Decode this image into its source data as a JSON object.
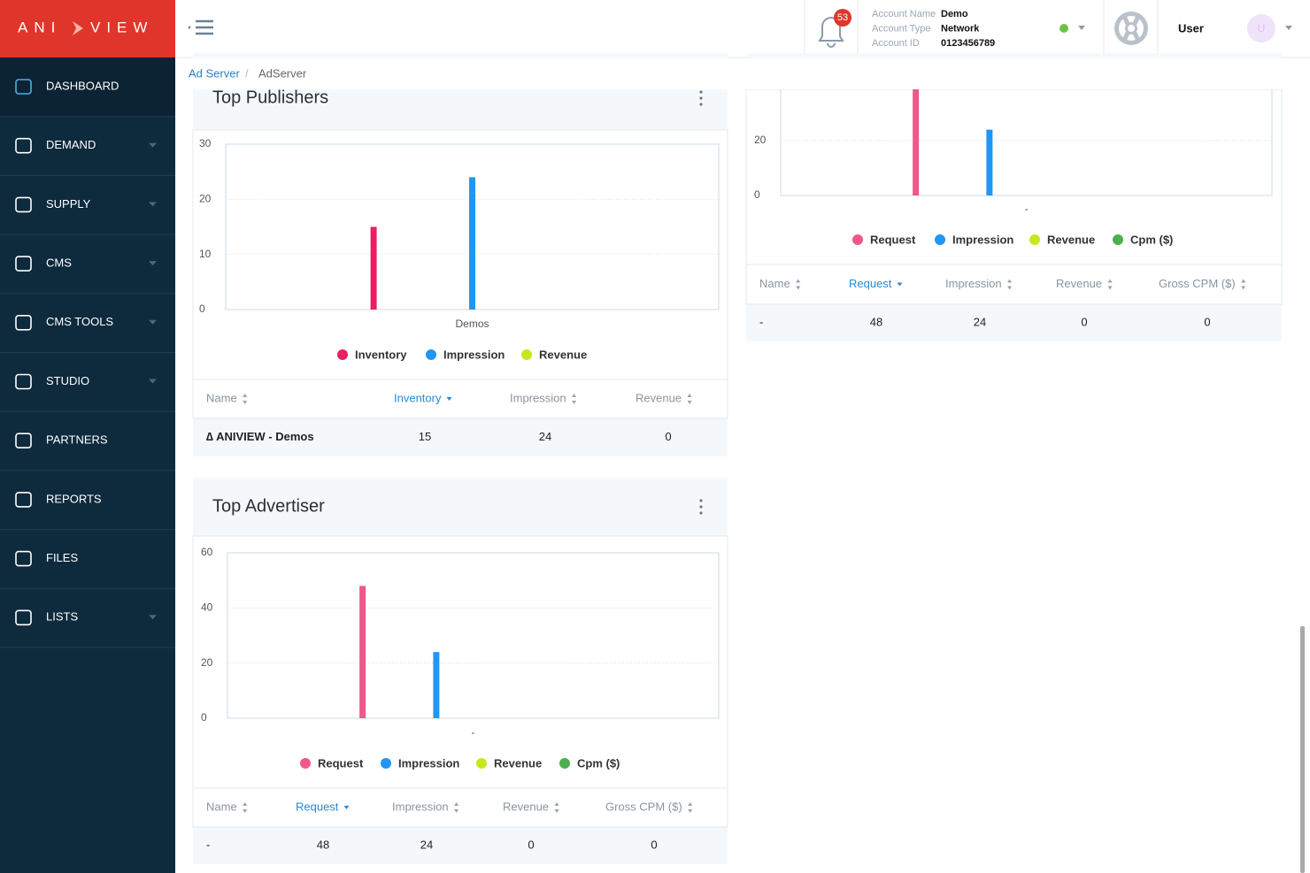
{
  "logo": {
    "left": "ANI",
    "right": "VIEW"
  },
  "menu": [
    {
      "label": "DASHBOARD",
      "dropdown": false
    },
    {
      "label": "DEMAND",
      "dropdown": true
    },
    {
      "label": "SUPPLY",
      "dropdown": true
    },
    {
      "label": "CMS",
      "dropdown": true
    },
    {
      "label": "CMS TOOLS",
      "dropdown": true
    },
    {
      "label": "STUDIO",
      "dropdown": true
    },
    {
      "label": "PARTNERS",
      "dropdown": false
    },
    {
      "label": "REPORTS",
      "dropdown": false
    },
    {
      "label": "FILES",
      "dropdown": false
    },
    {
      "label": "LISTS",
      "dropdown": true
    }
  ],
  "header": {
    "notifications": 53,
    "account": [
      {
        "label": "Account Name",
        "value": "Demo"
      },
      {
        "label": "Account Type",
        "value": "Network"
      },
      {
        "label": "Account ID",
        "value": "0123456789"
      }
    ],
    "user": "User",
    "avatar": "U"
  },
  "breadcrumb": [
    "Ad Server",
    "AdServer"
  ],
  "panels": [
    {
      "chart": {
        "type": "bar",
        "categories": [
          "-"
        ],
        "ylim": [
          0,
          60
        ],
        "yticks": [
          0,
          20
        ],
        "series": [
          {
            "name": "Request",
            "color": "#f0578a",
            "values": [
              48
            ]
          },
          {
            "name": "Impression",
            "color": "#2196f3",
            "values": [
              24
            ]
          },
          {
            "name": "Revenue",
            "color": "#c6e81e",
            "values": [
              0
            ]
          },
          {
            "name": "Cpm ($)",
            "color": "#4caf50",
            "values": [
              0
            ]
          }
        ]
      },
      "table": {
        "columns": [
          "Name",
          "Request",
          "Impression",
          "Revenue",
          "Gross CPM ($)"
        ],
        "sort_column": 1,
        "rows": [
          [
            "-",
            48,
            24,
            0,
            0
          ]
        ]
      }
    },
    {
      "title": "Top Publishers",
      "chart": {
        "type": "bar",
        "categories": [
          "Demos"
        ],
        "ylim": [
          0,
          30
        ],
        "yticks": [
          0,
          10,
          20,
          30
        ],
        "series": [
          {
            "name": "Inventory",
            "color": "#e91e63",
            "values": [
              15
            ]
          },
          {
            "name": "Impression",
            "color": "#2196f3",
            "values": [
              24
            ]
          },
          {
            "name": "Revenue",
            "color": "#c6e81e",
            "values": [
              0
            ]
          }
        ]
      },
      "table": {
        "columns": [
          "Name",
          "Inventory",
          "Impression",
          "Revenue"
        ],
        "sort_column": 1,
        "rows": [
          [
            "∆ ANIVIEW - Demos",
            15,
            24,
            0
          ]
        ]
      }
    },
    {
      "title": "Top Advertiser",
      "chart": {
        "type": "bar",
        "categories": [
          "-"
        ],
        "ylim": [
          0,
          60
        ],
        "yticks": [
          0,
          20,
          40,
          60
        ],
        "series": [
          {
            "name": "Request",
            "color": "#f0578a",
            "values": [
              48
            ]
          },
          {
            "name": "Impression",
            "color": "#2196f3",
            "values": [
              24
            ]
          },
          {
            "name": "Revenue",
            "color": "#c6e81e",
            "values": [
              0
            ]
          },
          {
            "name": "Cpm ($)",
            "color": "#4caf50",
            "values": [
              0
            ]
          }
        ]
      },
      "table": {
        "columns": [
          "Name",
          "Request",
          "Impression",
          "Revenue",
          "Gross CPM ($)"
        ],
        "sort_column": 1,
        "rows": [
          [
            "-",
            48,
            24,
            0,
            0
          ]
        ]
      }
    }
  ]
}
